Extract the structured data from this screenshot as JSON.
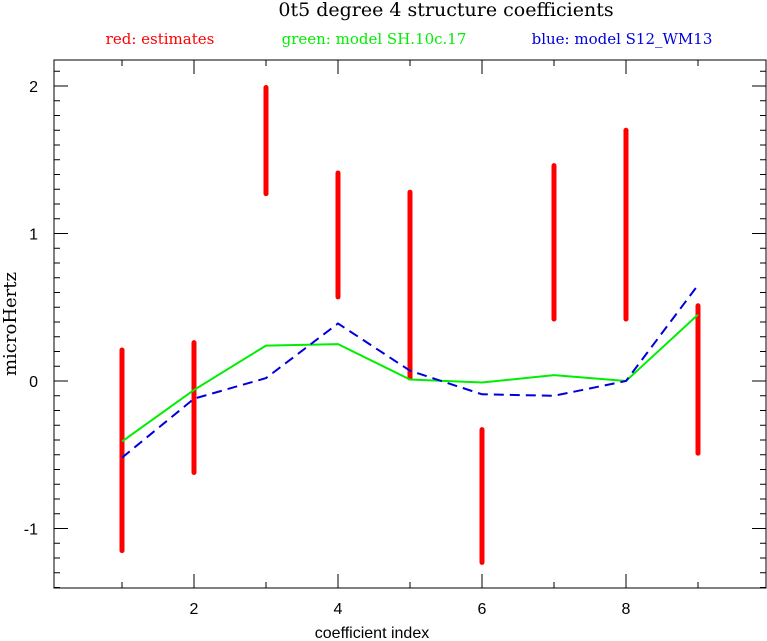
{
  "chart_data": {
    "type": "line",
    "title": "0t5 degree 4 structure coefficients",
    "xlabel": "coefficient index",
    "ylabel": "microHertz",
    "xlim": [
      0,
      10
    ],
    "ylim": [
      -1.42,
      2.2
    ],
    "xticks": [
      2,
      4,
      6,
      8
    ],
    "yticks": [
      -1,
      0,
      1,
      2
    ],
    "xtick_labels": [
      "2",
      "4",
      "6",
      "8"
    ],
    "ytick_labels": [
      "-1",
      "0",
      "1",
      "2"
    ],
    "legend": [
      {
        "text": "red: estimates",
        "color": "#ff0000"
      },
      {
        "text": "green: model SH.10c.17",
        "color": "#00ee00"
      },
      {
        "text": "blue: model S12_WM13",
        "color": "#0000dd"
      }
    ],
    "estimates": {
      "x": [
        1,
        2,
        3,
        4,
        5,
        6,
        7,
        8,
        9
      ],
      "low": [
        -1.15,
        -0.62,
        1.27,
        0.57,
        0.02,
        -1.23,
        0.42,
        0.42,
        -0.49
      ],
      "high": [
        0.21,
        0.26,
        1.99,
        1.41,
        1.28,
        -0.33,
        1.46,
        1.7,
        0.51
      ],
      "color": "#ff0000"
    },
    "series": [
      {
        "x": [
          1,
          2,
          3,
          4,
          5,
          6,
          7,
          8,
          9
        ],
        "values": [
          -0.41,
          -0.06,
          0.24,
          0.25,
          0.01,
          -0.01,
          0.04,
          0.0,
          0.45
        ],
        "color": "#00ee00",
        "style": "solid"
      },
      {
        "x": [
          1,
          2,
          3,
          4,
          5,
          6,
          7,
          8,
          9
        ],
        "values": [
          -0.52,
          -0.12,
          0.02,
          0.39,
          0.07,
          -0.09,
          -0.1,
          0.0,
          0.65
        ],
        "color": "#0000dd",
        "style": "dashed"
      }
    ],
    "grid": false
  }
}
